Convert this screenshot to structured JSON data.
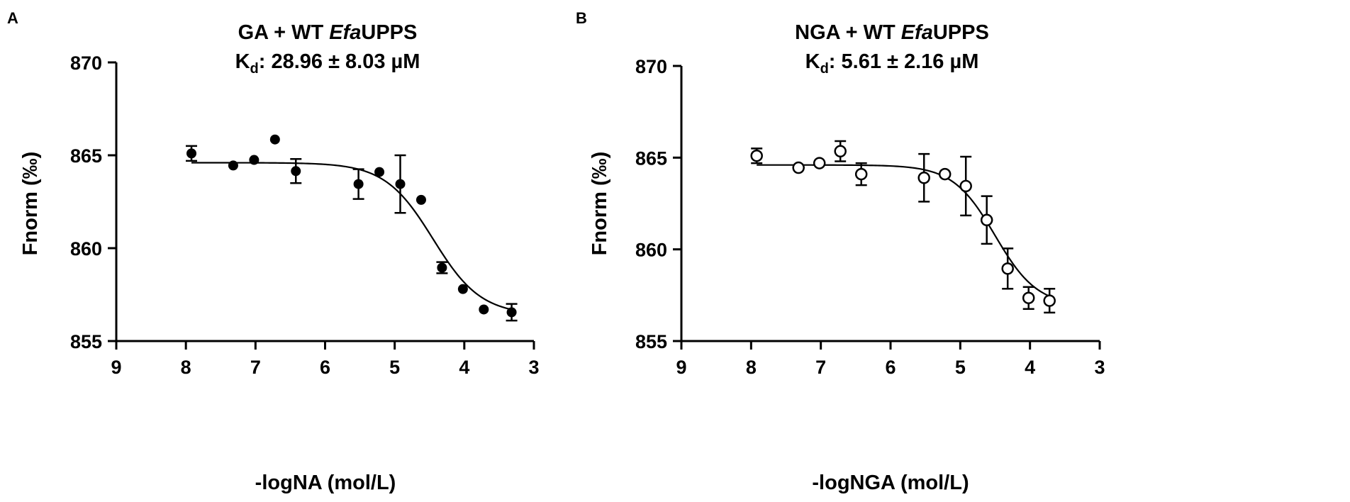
{
  "chart_data": [
    {
      "type": "scatter",
      "panel": "A",
      "title_prefix": "GA + WT ",
      "title_italic": "Efa",
      "title_suffix": "UPPS",
      "kd_prefix": "K",
      "kd_sub": "d",
      "kd_suffix": ": 28.96 ± 8.03 µM",
      "xlabel": "-logNA (mol/L)",
      "ylabel": "Fnorm (‰)",
      "xlim": [
        9,
        3
      ],
      "ylim": [
        855,
        870
      ],
      "xticks": [
        9,
        8,
        7,
        6,
        5,
        4,
        3
      ],
      "yticks": [
        855,
        860,
        865,
        870
      ],
      "marker": "filled",
      "series": [
        {
          "points": [
            {
              "x": 7.92,
              "y": 865.1,
              "err": 0.4
            },
            {
              "x": 7.32,
              "y": 864.45,
              "err": 0
            },
            {
              "x": 7.02,
              "y": 864.75,
              "err": 0
            },
            {
              "x": 6.72,
              "y": 865.85,
              "err": 0
            },
            {
              "x": 6.42,
              "y": 864.15,
              "err": 0.65
            },
            {
              "x": 5.52,
              "y": 863.45,
              "err": 0.8
            },
            {
              "x": 5.22,
              "y": 864.1,
              "err": 0
            },
            {
              "x": 4.92,
              "y": 863.45,
              "err": 1.55
            },
            {
              "x": 4.62,
              "y": 862.6,
              "err": 0
            },
            {
              "x": 4.32,
              "y": 858.95,
              "err": 0.3
            },
            {
              "x": 4.02,
              "y": 857.8,
              "err": 0
            },
            {
              "x": 3.72,
              "y": 856.7,
              "err": 0
            },
            {
              "x": 3.32,
              "y": 856.55,
              "err": 0.45
            }
          ]
        }
      ],
      "fit": {
        "top": 864.6,
        "bottom": 856.4,
        "x50": 4.45,
        "slope": 2.9,
        "x_from": 7.92,
        "x_to": 3.32
      }
    },
    {
      "type": "scatter",
      "panel": "B",
      "title_prefix": "NGA + WT ",
      "title_italic": "Efa",
      "title_suffix": "UPPS",
      "kd_prefix": "K",
      "kd_sub": "d",
      "kd_suffix": ": 5.61 ± 2.16 µM",
      "xlabel": "-logNGA (mol/L)",
      "ylabel": "Fnorm (‰)",
      "xlim": [
        9,
        3
      ],
      "ylim": [
        855,
        870
      ],
      "xticks": [
        9,
        8,
        7,
        6,
        5,
        4,
        3
      ],
      "yticks": [
        855,
        860,
        865,
        870
      ],
      "marker": "open",
      "series": [
        {
          "points": [
            {
              "x": 7.92,
              "y": 865.1,
              "err": 0.4
            },
            {
              "x": 7.32,
              "y": 864.45,
              "err": 0
            },
            {
              "x": 7.02,
              "y": 864.7,
              "err": 0
            },
            {
              "x": 6.72,
              "y": 865.35,
              "err": 0.55
            },
            {
              "x": 6.42,
              "y": 864.1,
              "err": 0.6
            },
            {
              "x": 5.52,
              "y": 863.9,
              "err": 1.3
            },
            {
              "x": 5.22,
              "y": 864.1,
              "err": 0
            },
            {
              "x": 4.92,
              "y": 863.45,
              "err": 1.6
            },
            {
              "x": 4.62,
              "y": 861.6,
              "err": 1.3
            },
            {
              "x": 4.32,
              "y": 858.95,
              "err": 1.1
            },
            {
              "x": 4.02,
              "y": 857.35,
              "err": 0.6
            },
            {
              "x": 3.72,
              "y": 857.2,
              "err": 0.65
            }
          ]
        }
      ],
      "fit": {
        "top": 864.6,
        "bottom": 856.9,
        "x50": 4.5,
        "slope": 3.3,
        "x_from": 7.92,
        "x_to": 3.72
      }
    }
  ]
}
